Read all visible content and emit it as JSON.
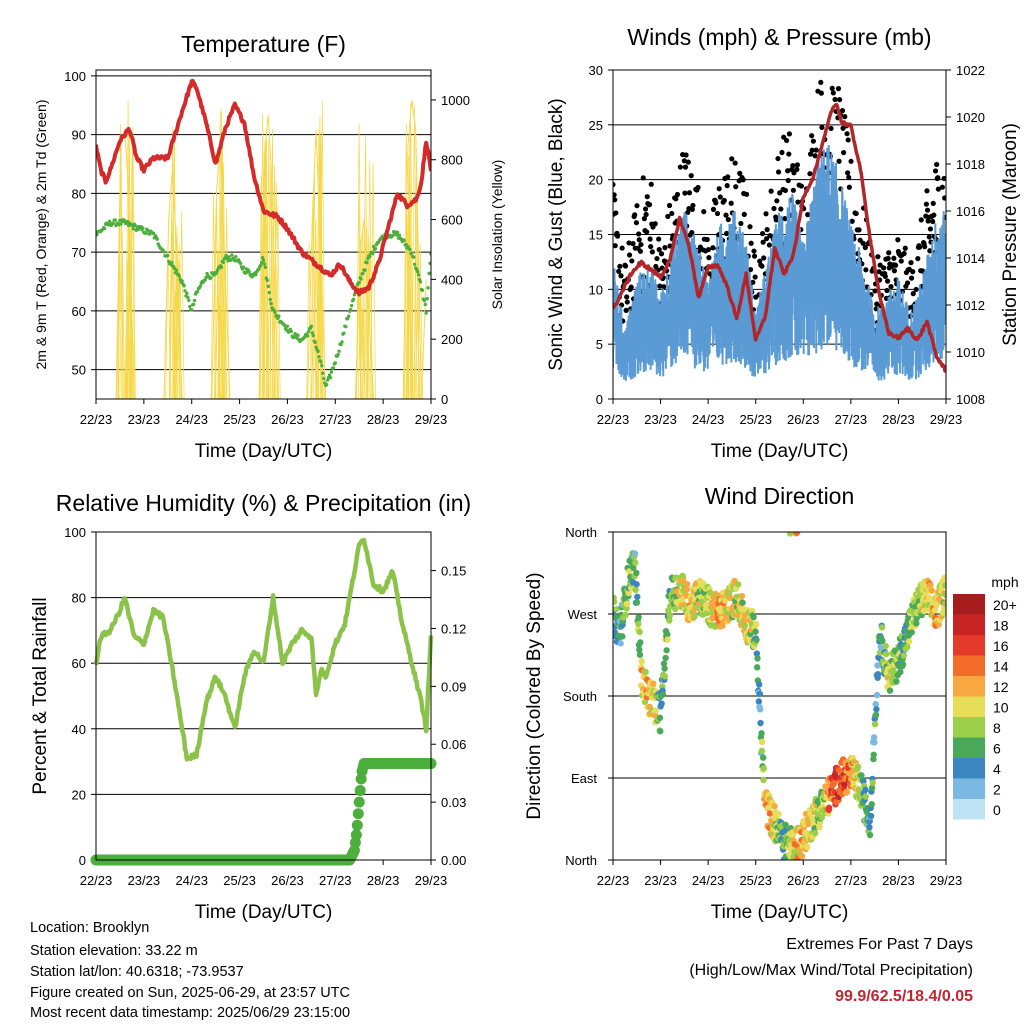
{
  "footer": {
    "location": "Location: Brooklyn",
    "elevation": "Station elevation: 33.22 m",
    "latlon": "Station lat/lon: 40.6318; -73.9537",
    "created": "Figure created on Sun, 2025-06-29, at 23:57 UTC",
    "recent": "Most recent data timestamp: 2025/06/29 23:15:00",
    "extremes_title": "Extremes For Past 7 Days",
    "extremes_sub": "(High/Low/Max Wind/Total Precipitation)",
    "extremes_values": "99.9/62.5/18.4/0.05"
  },
  "chart_data": [
    {
      "type": "line",
      "title": "Temperature (F)",
      "xlabel": "Time (Day/UTC)",
      "ylabel": "2m & 9m T (Red, Orange) & 2m Td (Green)",
      "y2label": "Solar Insolation (Yellow)",
      "x_ticks": [
        "22/23",
        "23/23",
        "24/23",
        "25/23",
        "26/23",
        "27/23",
        "28/23",
        "29/23"
      ],
      "ylim": [
        45,
        101
      ],
      "y_ticks": [
        50,
        60,
        70,
        80,
        90,
        100
      ],
      "y2lim": [
        0,
        1100
      ],
      "y2_ticks": [
        0,
        200,
        400,
        600,
        800,
        1000
      ],
      "grid": "horizontal",
      "colors": {
        "temperature": "#d42a2a",
        "dewpoint": "#4caf3c",
        "solar": "#f5d84a"
      },
      "series": [
        {
          "key": "temperature",
          "x": [
            0,
            0.1,
            0.2,
            0.3,
            0.5,
            0.7,
            0.85,
            1.0,
            1.2,
            1.5,
            1.8,
            2.0,
            2.1,
            2.3,
            2.5,
            2.7,
            2.9,
            3.1,
            3.3,
            3.5,
            3.8,
            4.0,
            4.3,
            4.6,
            4.9,
            5.1,
            5.3,
            5.5,
            5.7,
            5.9,
            6.1,
            6.3,
            6.5,
            6.7,
            6.8,
            6.9,
            7.0
          ],
          "y": [
            88,
            84,
            82,
            84,
            89,
            91,
            86,
            84,
            86,
            86,
            94,
            99,
            98,
            92,
            85,
            91,
            95,
            92,
            83,
            77,
            76,
            74,
            70,
            68,
            66,
            68,
            65,
            63,
            64,
            68,
            74,
            80,
            78,
            79,
            82,
            89,
            84
          ]
        },
        {
          "key": "dewpoint",
          "x": [
            0,
            0.3,
            0.6,
            0.9,
            1.2,
            1.5,
            1.8,
            2.0,
            2.1,
            2.3,
            2.5,
            2.7,
            2.9,
            3.1,
            3.3,
            3.5,
            3.6,
            3.7,
            3.9,
            4.1,
            4.3,
            4.5,
            4.7,
            4.8,
            4.9,
            5.1,
            5.3,
            5.5,
            5.7,
            5.9,
            6.1,
            6.3,
            6.5,
            6.6,
            6.8,
            6.9,
            7.0
          ],
          "y": [
            73,
            75,
            75,
            74,
            73,
            69,
            65,
            60,
            63,
            66,
            66,
            69,
            69,
            67,
            66,
            69,
            64,
            60,
            58,
            56,
            55,
            57,
            51,
            47,
            49,
            54,
            60,
            65,
            69,
            72,
            73,
            73,
            71,
            70,
            64,
            60,
            70
          ]
        },
        {
          "key": "solar",
          "x": [
            0.42,
            0.52,
            0.6,
            0.68,
            0.8,
            1.42,
            1.52,
            1.6,
            1.68,
            1.8,
            2.42,
            2.52,
            2.6,
            2.68,
            2.8,
            3.42,
            3.52,
            3.6,
            3.68,
            3.8,
            4.42,
            4.52,
            4.6,
            4.68,
            4.8,
            5.42,
            5.52,
            5.6,
            5.68,
            5.8,
            6.42,
            6.52,
            6.6,
            6.68,
            6.8,
            6.9
          ],
          "y": [
            0,
            850,
            900,
            700,
            0,
            0,
            600,
            780,
            500,
            0,
            0,
            700,
            850,
            500,
            0,
            0,
            820,
            950,
            700,
            0,
            0,
            600,
            900,
            550,
            0,
            0,
            500,
            600,
            350,
            0,
            0,
            850,
            1000,
            900,
            0,
            400
          ]
        }
      ]
    },
    {
      "type": "line",
      "title": "Winds (mph) & Pressure (mb)",
      "xlabel": "Time (Day/UTC)",
      "ylabel": "Sonic Wind & Gust (Blue, Black)",
      "y2label": "Station Pressure (Maroon)",
      "x_ticks": [
        "22/23",
        "23/23",
        "24/23",
        "25/23",
        "26/23",
        "27/23",
        "28/23",
        "29/23"
      ],
      "ylim": [
        0,
        30
      ],
      "y_ticks": [
        0,
        5,
        10,
        15,
        20,
        25,
        30
      ],
      "y2lim": [
        1008,
        1022
      ],
      "y2_ticks": [
        1008,
        1010,
        1012,
        1014,
        1016,
        1018,
        1020,
        1022
      ],
      "grid": "horizontal",
      "colors": {
        "wind": "#5b9bd5",
        "gust": "#000000",
        "pressure": "#b0272b"
      },
      "series": [
        {
          "key": "wind",
          "x": [
            0,
            0.25,
            0.5,
            0.75,
            1.0,
            1.25,
            1.5,
            1.75,
            2.0,
            2.25,
            2.5,
            2.75,
            3.0,
            3.25,
            3.5,
            3.75,
            4.0,
            4.25,
            4.5,
            4.75,
            5.0,
            5.25,
            5.5,
            5.75,
            6.0,
            6.25,
            6.5,
            6.75,
            7.0
          ],
          "y": [
            8,
            4,
            7,
            8,
            6,
            9,
            11,
            9,
            7,
            10,
            11,
            10,
            5,
            8,
            11,
            12,
            9,
            13,
            15,
            13,
            10,
            8,
            5,
            6,
            7,
            5,
            7,
            10,
            12
          ]
        },
        {
          "key": "gust",
          "x": [
            0,
            0.25,
            0.5,
            0.75,
            1.0,
            1.25,
            1.5,
            1.75,
            2.0,
            2.25,
            2.5,
            2.75,
            3.0,
            3.25,
            3.5,
            3.75,
            4.0,
            4.25,
            4.5,
            4.75,
            5.0,
            5.25,
            5.5,
            5.75,
            6.0,
            6.25,
            6.5,
            6.75,
            7.0
          ],
          "y": [
            14,
            9,
            13,
            16,
            10,
            14,
            17,
            15,
            11,
            15,
            16,
            15,
            9,
            13,
            17,
            18,
            14,
            20,
            23,
            21,
            16,
            13,
            9,
            10,
            11,
            9,
            12,
            16,
            17
          ]
        },
        {
          "key": "pressure",
          "x": [
            0,
            0.2,
            0.4,
            0.6,
            0.8,
            1.0,
            1.2,
            1.4,
            1.6,
            1.8,
            2.0,
            2.2,
            2.4,
            2.6,
            2.8,
            3.0,
            3.2,
            3.4,
            3.6,
            3.8,
            4.0,
            4.2,
            4.4,
            4.6,
            4.7,
            4.8,
            5.0,
            5.2,
            5.4,
            5.6,
            5.8,
            6.0,
            6.2,
            6.4,
            6.6,
            6.8,
            7.0
          ],
          "y": [
            1011.8,
            1012.6,
            1013.4,
            1013.8,
            1013.5,
            1013.2,
            1013.9,
            1015.7,
            1014.5,
            1012.3,
            1013.6,
            1013.7,
            1012.8,
            1011.4,
            1013.3,
            1010.5,
            1011.5,
            1014.4,
            1013.3,
            1014.2,
            1016.6,
            1017.4,
            1018.8,
            1020.3,
            1020.6,
            1019.8,
            1019.6,
            1017.8,
            1014.9,
            1012.4,
            1010.8,
            1010.6,
            1011.0,
            1010.5,
            1011.3,
            1009.8,
            1009.2
          ]
        }
      ]
    },
    {
      "type": "line",
      "title": "Relative Humidity (%) & Precipitation (in)",
      "xlabel": "Time (Day/UTC)",
      "ylabel": "Percent & Total Rainfall",
      "x_ticks": [
        "22/23",
        "23/23",
        "24/23",
        "25/23",
        "26/23",
        "27/23",
        "28/23",
        "29/23"
      ],
      "ylim": [
        0,
        100
      ],
      "y_ticks": [
        0,
        20,
        40,
        60,
        80,
        100
      ],
      "y2lim": [
        0,
        0.17
      ],
      "y2_ticks": [
        "0.00",
        "0.03",
        "0.06",
        "0.09",
        "0.12",
        "0.15"
      ],
      "grid": "horizontal",
      "colors": {
        "humidity": "#8bc34a",
        "precip": "#4caf3c"
      },
      "series": [
        {
          "key": "humidity",
          "x": [
            0,
            0.1,
            0.3,
            0.5,
            0.6,
            0.8,
            1.0,
            1.2,
            1.4,
            1.6,
            1.8,
            1.9,
            2.1,
            2.3,
            2.5,
            2.7,
            2.9,
            3.1,
            3.3,
            3.5,
            3.7,
            3.9,
            4.1,
            4.3,
            4.5,
            4.6,
            4.7,
            4.8,
            5.0,
            5.2,
            5.3,
            5.5,
            5.6,
            5.8,
            6.0,
            6.2,
            6.4,
            6.6,
            6.8,
            6.9,
            7.0
          ],
          "y": [
            60,
            68,
            70,
            76,
            80,
            68,
            66,
            76,
            74,
            58,
            40,
            31,
            32,
            48,
            56,
            50,
            40,
            56,
            64,
            60,
            80,
            60,
            66,
            70,
            68,
            50,
            58,
            56,
            66,
            72,
            80,
            96,
            98,
            84,
            82,
            88,
            72,
            60,
            48,
            40,
            68
          ]
        },
        {
          "key": "precip",
          "x": [
            0,
            1,
            2,
            3,
            4,
            5,
            5.3,
            5.4,
            5.45,
            5.5,
            5.55,
            5.6,
            6,
            6.5,
            7.0
          ],
          "y": [
            0,
            0,
            0,
            0,
            0,
            0,
            0,
            0.005,
            0.015,
            0.03,
            0.045,
            0.05,
            0.05,
            0.05,
            0.05
          ]
        }
      ]
    },
    {
      "type": "scatter",
      "title": "Wind Direction",
      "xlabel": "Time (Day/UTC)",
      "ylabel": "Direction (Colored By Speed)",
      "x_ticks": [
        "22/23",
        "23/23",
        "24/23",
        "25/23",
        "26/23",
        "27/23",
        "28/23",
        "29/23"
      ],
      "y_ticks": [
        "North",
        "East",
        "South",
        "West",
        "North"
      ],
      "ylim": [
        0,
        360
      ],
      "grid": "horizontal",
      "colorbar": {
        "title": "mph",
        "labels": [
          "20+",
          "18",
          "16",
          "14",
          "12",
          "10",
          "8",
          "6",
          "4",
          "2",
          "0"
        ],
        "colors": [
          "#a51d1d",
          "#c92424",
          "#e53a2a",
          "#f36c2a",
          "#f9a740",
          "#e6de58",
          "#9bcf4a",
          "#4aa85a",
          "#3c86c0",
          "#7ab9e4",
          "#bfe3f5"
        ]
      },
      "series": [
        {
          "name": "direction",
          "x": [
            0,
            0.15,
            0.3,
            0.45,
            0.6,
            0.75,
            0.9,
            1.0,
            1.2,
            1.4,
            1.6,
            1.8,
            2.0,
            2.2,
            2.4,
            2.6,
            2.8,
            3.0,
            3.1,
            3.2,
            3.4,
            3.6,
            3.8,
            4.0,
            4.2,
            4.4,
            4.6,
            4.8,
            5.0,
            5.2,
            5.4,
            5.6,
            5.8,
            6.0,
            6.2,
            6.4,
            6.6,
            6.8,
            7.0
          ],
          "y": [
            270,
            250,
            300,
            330,
            200,
            180,
            170,
            160,
            290,
            300,
            280,
            290,
            280,
            270,
            280,
            290,
            260,
            250,
            150,
            60,
            40,
            20,
            15,
            25,
            45,
            60,
            75,
            90,
            95,
            80,
            40,
            250,
            200,
            220,
            250,
            280,
            290,
            270,
            300
          ],
          "speed": [
            6,
            4,
            8,
            5,
            10,
            12,
            9,
            6,
            7,
            10,
            11,
            9,
            8,
            12,
            11,
            9,
            10,
            7,
            4,
            12,
            9,
            6,
            10,
            12,
            9,
            8,
            15,
            16,
            13,
            8,
            4,
            5,
            9,
            7,
            6,
            8,
            10,
            12,
            9
          ]
        }
      ]
    }
  ]
}
